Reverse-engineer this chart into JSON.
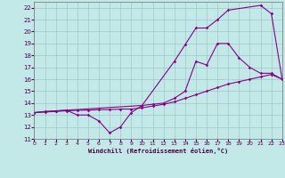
{
  "xlabel": "Windchill (Refroidissement éolien,°C)",
  "bg_color": "#c2e8e8",
  "line_color": "#880088",
  "grid_color": "#98c0c0",
  "xlim": [
    0,
    23
  ],
  "ylim": [
    11,
    22.5
  ],
  "xticks": [
    0,
    1,
    2,
    3,
    4,
    5,
    6,
    7,
    8,
    9,
    10,
    11,
    12,
    13,
    14,
    15,
    16,
    17,
    18,
    19,
    20,
    21,
    22,
    23
  ],
  "yticks": [
    11,
    12,
    13,
    14,
    15,
    16,
    17,
    18,
    19,
    20,
    21,
    22
  ],
  "line1_x": [
    0,
    1,
    2,
    3,
    4,
    5,
    6,
    7,
    8,
    9,
    10,
    11,
    12,
    13,
    14,
    15,
    16,
    17,
    18,
    19,
    20,
    21,
    22,
    23
  ],
  "line1_y": [
    13.2,
    13.3,
    13.35,
    13.4,
    13.0,
    13.0,
    12.5,
    11.5,
    12.0,
    13.2,
    13.8,
    13.9,
    14.0,
    14.4,
    15.0,
    17.5,
    17.2,
    19.0,
    19.0,
    17.8,
    17.0,
    16.5,
    16.5,
    16.0
  ],
  "line2_x": [
    0,
    1,
    2,
    3,
    4,
    5,
    6,
    7,
    8,
    9,
    10,
    11,
    12,
    13,
    14,
    15,
    16,
    17,
    18,
    19,
    20,
    21,
    22,
    23
  ],
  "line2_y": [
    13.2,
    13.25,
    13.3,
    13.35,
    13.4,
    13.4,
    13.45,
    13.45,
    13.5,
    13.5,
    13.6,
    13.75,
    13.9,
    14.1,
    14.4,
    14.7,
    15.0,
    15.3,
    15.6,
    15.8,
    16.0,
    16.2,
    16.4,
    16.0
  ],
  "line3_x": [
    0,
    3,
    10,
    13,
    14,
    15,
    16,
    17,
    18,
    21,
    22,
    23
  ],
  "line3_y": [
    13.2,
    13.4,
    13.8,
    17.5,
    18.9,
    20.3,
    20.3,
    21.0,
    21.8,
    22.2,
    21.5,
    16.0
  ]
}
